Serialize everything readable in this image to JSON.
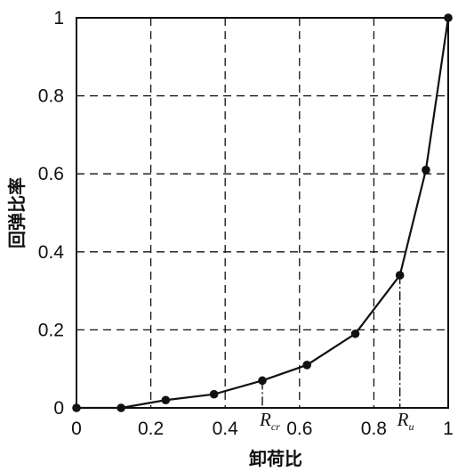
{
  "chart_data": {
    "type": "line",
    "title": "",
    "xlabel": "卸荷比",
    "ylabel": "回弹比率",
    "xlim": [
      0,
      1
    ],
    "ylim": [
      0,
      1
    ],
    "x_ticks": [
      "0",
      "0.2",
      "0.4",
      "0.6",
      "0.8",
      "1"
    ],
    "y_ticks": [
      "0",
      "0.2",
      "0.4",
      "0.6",
      "0.8",
      "1"
    ],
    "grid": true,
    "legend": "none",
    "series": [
      {
        "x": [
          0,
          0.12,
          0.24,
          0.37,
          0.5,
          0.62,
          0.75,
          0.87,
          0.94,
          1.0
        ],
        "y": [
          0,
          0,
          0.02,
          0.035,
          0.07,
          0.11,
          0.19,
          0.34,
          0.61,
          1.0
        ]
      }
    ],
    "annotations": [
      {
        "text": "R",
        "sub": "cr",
        "x": 0.5,
        "y": 0.07
      },
      {
        "text": "R",
        "sub": "u",
        "x": 0.87,
        "y": 0.34
      }
    ],
    "colors": {
      "line": "#111111",
      "grid": "#111111"
    }
  }
}
